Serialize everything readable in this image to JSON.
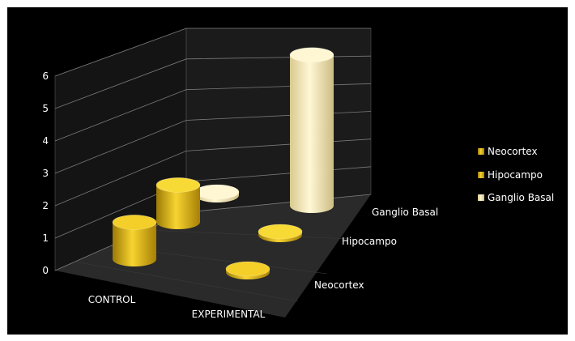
{
  "chart_data": {
    "type": "bar",
    "style": "3d-cylinder",
    "categories": [
      "CONTROL",
      "EXPERIMENTAL"
    ],
    "series": [
      {
        "name": "Neocortex",
        "values": [
          1.2,
          0.1
        ]
      },
      {
        "name": "Hipocampo",
        "values": [
          1.2,
          0.1
        ]
      },
      {
        "name": "Ganglio Basal",
        "values": [
          0.1,
          4.9
        ]
      }
    ],
    "y_ticks": [
      "0",
      "1",
      "2",
      "3",
      "4",
      "5",
      "6"
    ],
    "ylim": [
      0,
      6
    ],
    "legend_position": "right",
    "grid": true,
    "colors": {
      "background": "#000000",
      "frame": "#ffffff",
      "wall": "#161616",
      "floor": "#2e2e2e",
      "grid": "#7a7a7a",
      "Neocortex": "#e8c21c",
      "Hipocampo": "#f2d22a",
      "Ganglio Basal": "#fff2bf"
    }
  }
}
